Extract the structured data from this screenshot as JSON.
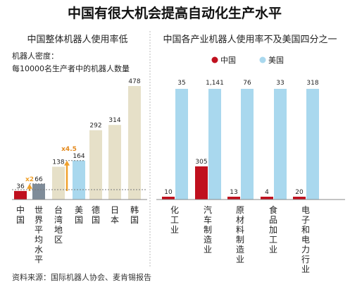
{
  "title": "中国有很大机会提高自动化生产水平",
  "source": "资料来源：国际机器人协会、麦肯锡报告",
  "colors": {
    "china": "#c0101e",
    "us": "#a9d8ee",
    "world": "#7f8c99",
    "others": "#e6e0c8",
    "arrow": "#f0a02a",
    "x2_label": "#f0a02a",
    "x45_label": "#e48a1e"
  },
  "chart_data": [
    {
      "type": "bar",
      "title": "中国整体机器人使用率低",
      "note_line1": "机器人密度：",
      "note_line2": "每10000名生产者中的机器人数量",
      "categories": [
        "中国",
        "世界平均水平",
        "台湾地区",
        "美国",
        "德国",
        "日本",
        "韩国"
      ],
      "values": [
        36,
        66,
        138,
        164,
        292,
        314,
        478
      ],
      "annotations": [
        {
          "label": "x2",
          "from": "中国",
          "to": "世界平均水平"
        },
        {
          "label": "x4.5",
          "from": "中国",
          "to": "美国"
        }
      ]
    },
    {
      "type": "bar",
      "title": "中国各产业机器人使用率不及美国四分之一",
      "categories": [
        "化工业",
        "汽车制造业",
        "原材料制造业",
        "食品加工业",
        "电子和电力行业"
      ],
      "legend": [
        "中国",
        "美国"
      ],
      "legend_position": "top",
      "series": [
        {
          "name": "中国",
          "values": [
            10,
            305,
            13,
            4,
            20
          ]
        },
        {
          "name": "美国",
          "values": [
            35,
            1141,
            76,
            33,
            318
          ]
        }
      ]
    }
  ]
}
